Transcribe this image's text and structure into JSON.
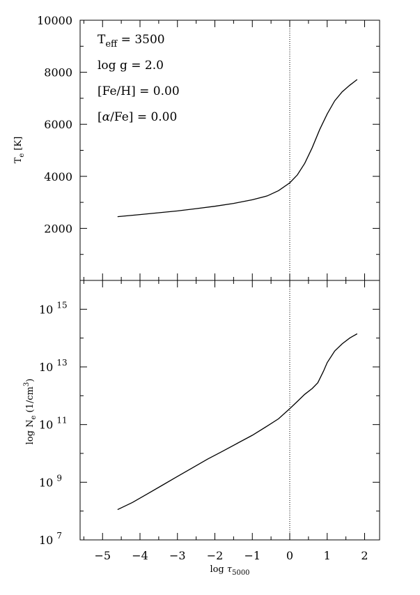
{
  "annotations": {
    "teff_prefix": "T",
    "teff_sub": "eff",
    "teff_value": " = 3500",
    "teff_color": "#ff0000",
    "logg": "log  g = 2.0",
    "feh": "[Fe/H] =   0.00",
    "alpha_pre": "[",
    "alpha_sym": "α",
    "alpha_post": "/Fe] = 0.00"
  },
  "axes": {
    "top_ylabel_main": "T",
    "top_ylabel_sub": "e",
    "top_ylabel_unit": " [K]",
    "bottom_ylabel_pre": "log N",
    "bottom_ylabel_sub": "e",
    "bottom_ylabel_unit": " (1/cm",
    "bottom_ylabel_sup": "3",
    "bottom_ylabel_close": ")",
    "xlabel_pre": "log ",
    "xlabel_sym": "τ",
    "xlabel_sub": "5000",
    "x_tick_labels": [
      "−5",
      "−4",
      "−3",
      "−2",
      "−1",
      "0",
      "1",
      "2"
    ],
    "top_y_tick_labels": [
      "2000",
      "4000",
      "6000",
      "8000",
      "10000"
    ],
    "bottom_y_base": "10",
    "bottom_y_exponents": [
      "7",
      "9",
      "11",
      "13",
      "15"
    ]
  },
  "chart_data": [
    {
      "type": "line",
      "panel": "top",
      "xlim": [
        -5.6,
        2.4
      ],
      "ylim": [
        0,
        10000
      ],
      "reference_line_x": 0,
      "series": [
        {
          "x": [
            -4.6,
            -4.0,
            -3.5,
            -3.0,
            -2.5,
            -2.0,
            -1.5,
            -1.0,
            -0.6,
            -0.3,
            0.0,
            0.2,
            0.4,
            0.6,
            0.8,
            1.0,
            1.2,
            1.4,
            1.6,
            1.8
          ],
          "y": [
            2450,
            2530,
            2600,
            2670,
            2760,
            2850,
            2960,
            3100,
            3250,
            3450,
            3750,
            4050,
            4500,
            5100,
            5800,
            6400,
            6900,
            7250,
            7500,
            7720
          ]
        }
      ]
    },
    {
      "type": "line",
      "panel": "bottom",
      "xlim": [
        -5.6,
        2.4
      ],
      "ylim": [
        7,
        16
      ],
      "y_scale": "log",
      "reference_line_x": 0,
      "series": [
        {
          "x": [
            -4.6,
            -4.2,
            -3.8,
            -3.4,
            -3.0,
            -2.6,
            -2.2,
            -1.8,
            -1.4,
            -1.0,
            -0.6,
            -0.3,
            0.0,
            0.2,
            0.4,
            0.6,
            0.75,
            0.9,
            1.0,
            1.2,
            1.4,
            1.6,
            1.8
          ],
          "y": [
            8.05,
            8.3,
            8.6,
            8.9,
            9.2,
            9.5,
            9.8,
            10.07,
            10.35,
            10.63,
            10.95,
            11.2,
            11.55,
            11.8,
            12.05,
            12.25,
            12.45,
            12.85,
            13.15,
            13.55,
            13.8,
            14.0,
            14.15
          ]
        }
      ]
    }
  ]
}
